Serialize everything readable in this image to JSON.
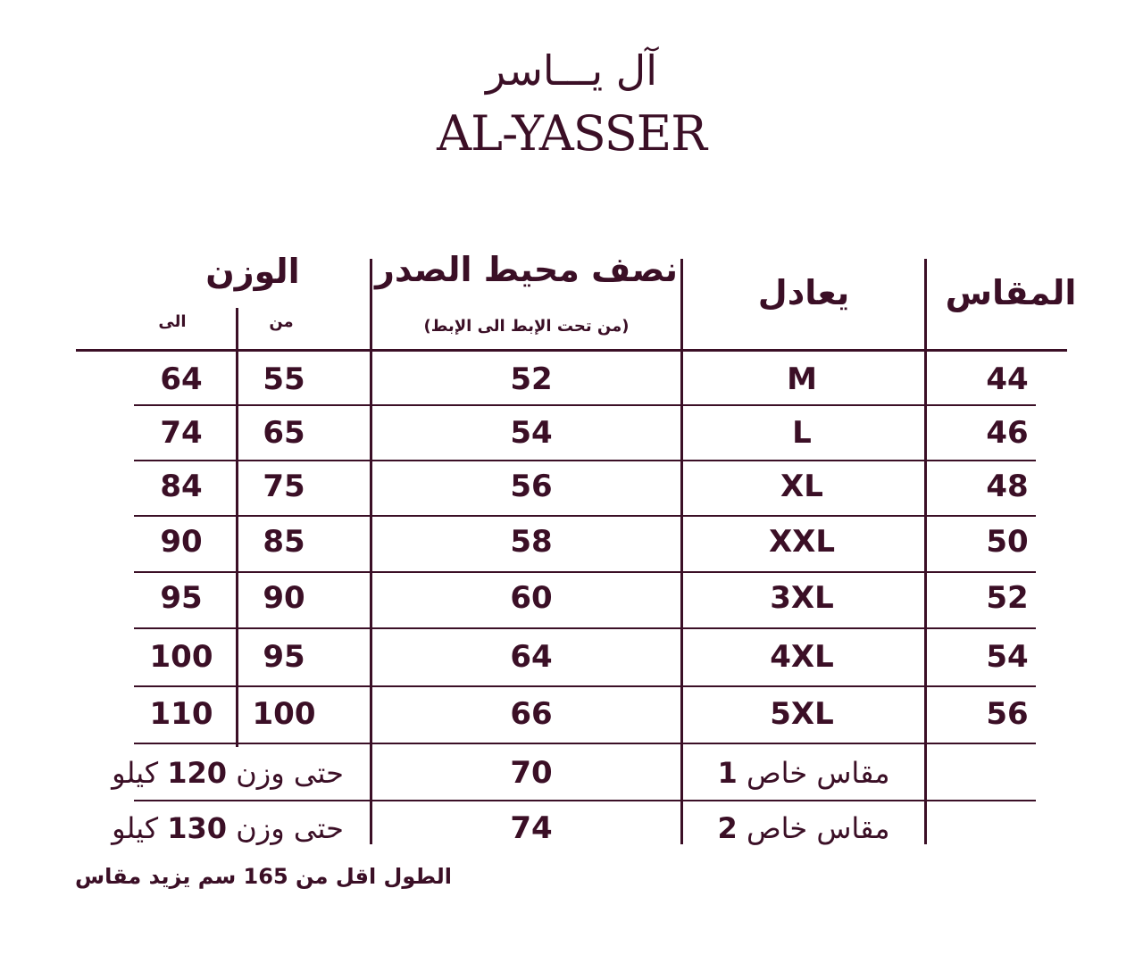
{
  "logo": {
    "arabic": "آل يـــاسر",
    "latin": "AL-YASSER"
  },
  "headers": {
    "size": "المقاس",
    "equivalent": "يعادل",
    "chest": "نصف محيط الصدر",
    "chest_note": "(من تحت الإبط الى الإبط)",
    "weight": "الوزن",
    "weight_from": "من",
    "weight_to": "الى"
  },
  "rows": [
    {
      "size": "44",
      "equivalent": "M",
      "chest": "52",
      "from": "55",
      "to": "64"
    },
    {
      "size": "46",
      "equivalent": "L",
      "chest": "54",
      "from": "65",
      "to": "74"
    },
    {
      "size": "48",
      "equivalent": "XL",
      "chest": "56",
      "from": "75",
      "to": "84"
    },
    {
      "size": "50",
      "equivalent": "XXL",
      "chest": "58",
      "from": "85",
      "to": "90"
    },
    {
      "size": "52",
      "equivalent": "3XL",
      "chest": "60",
      "from": "90",
      "to": "95"
    },
    {
      "size": "54",
      "equivalent": "4XL",
      "chest": "64",
      "from": "95",
      "to": "100"
    },
    {
      "size": "56",
      "equivalent": "5XL",
      "chest": "66",
      "from": "100",
      "to": "110"
    }
  ],
  "special_rows": [
    {
      "label": "مقاس خاص",
      "num": "1",
      "chest": "70",
      "weight_prefix": "حتى وزن",
      "weight": "120",
      "weight_unit": "كيلو"
    },
    {
      "label": "مقاس خاص",
      "num": "2",
      "chest": "74",
      "weight_prefix": "حتى وزن",
      "weight": "130",
      "weight_unit": "كيلو"
    }
  ],
  "footer_note": "الطول اقل من 165 سم يزيد مقاس",
  "colors": {
    "ink": "#3b0f26",
    "background": "#ffffff"
  }
}
